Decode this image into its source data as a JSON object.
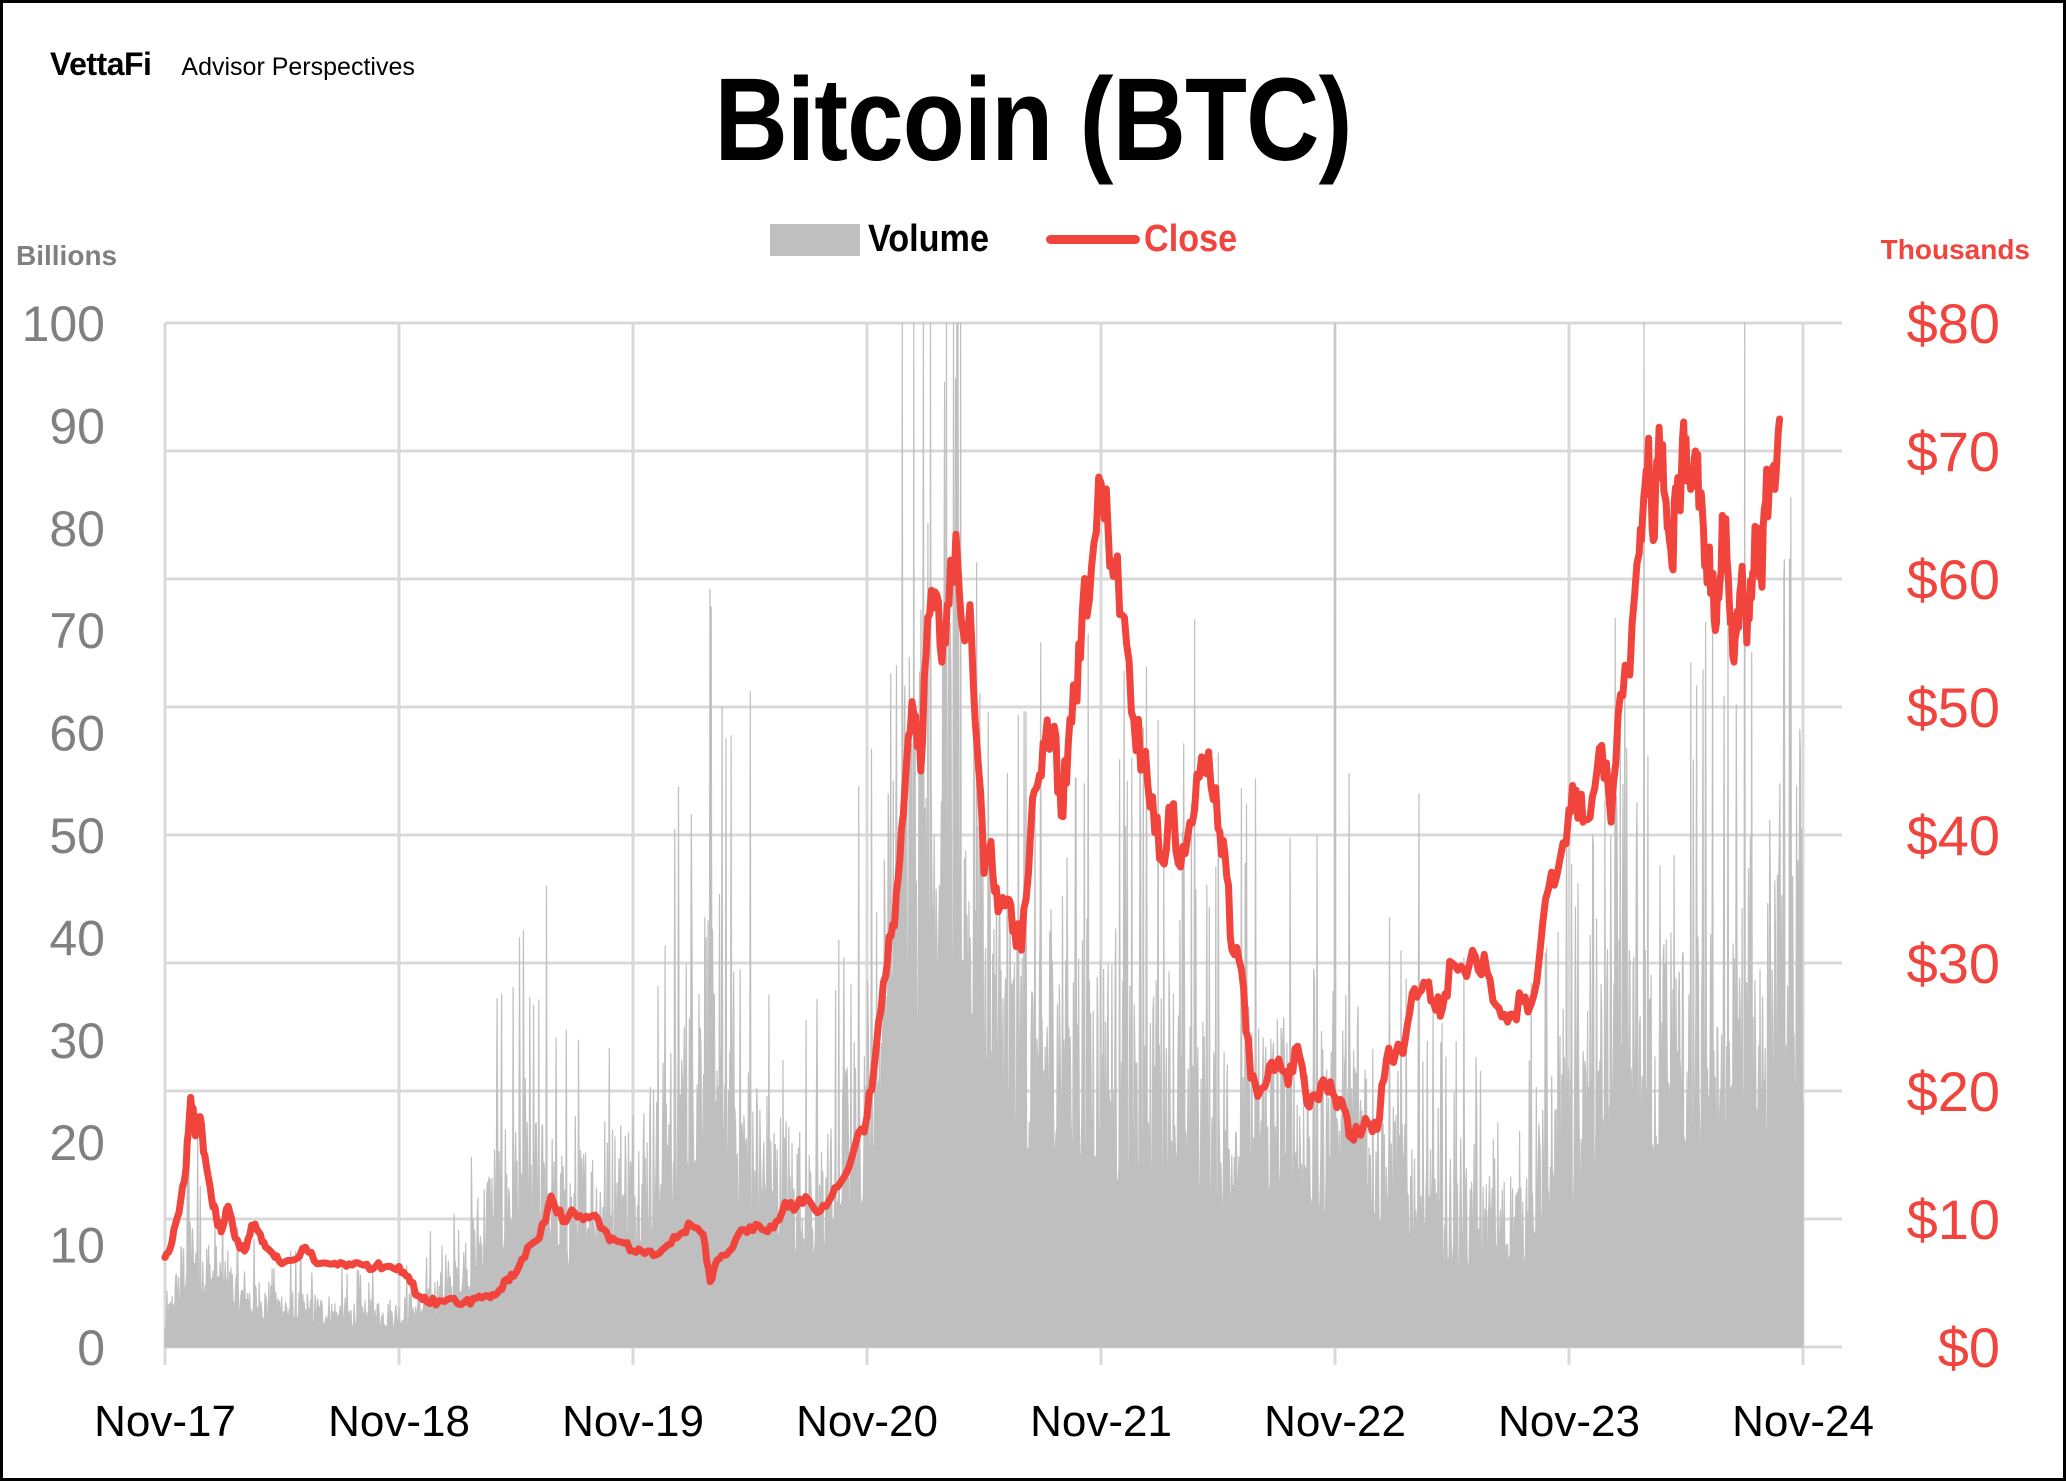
{
  "header": {
    "logo_brand": "VettaFi",
    "logo_sub": "Advisor Perspectives",
    "title": "Bitcoin (BTC)"
  },
  "legend": {
    "volume_label": "Volume",
    "close_label": "Close"
  },
  "axes": {
    "left_title": "Billions",
    "right_title": "Thousands",
    "left_ticks": [
      "0",
      "10",
      "20",
      "30",
      "40",
      "50",
      "60",
      "70",
      "80",
      "90",
      "100"
    ],
    "right_ticks": [
      "$0",
      "$10",
      "$20",
      "$30",
      "$40",
      "$50",
      "$60",
      "$70",
      "$80"
    ],
    "x_ticks": [
      "Nov-17",
      "Nov-18",
      "Nov-19",
      "Nov-20",
      "Nov-21",
      "Nov-22",
      "Nov-23",
      "Nov-24"
    ]
  },
  "colors": {
    "volume": "#bfbfbf",
    "close": "#f0443c",
    "grid": "#d9d9d9",
    "left_axis_text": "#808080",
    "right_axis_text": "#f0443c"
  },
  "chart_data": {
    "type": "bar+line",
    "title": "Bitcoin (BTC)",
    "xlabel": "",
    "ylabel": "Volume (Billions)",
    "y2label": "Close (Thousands, USD)",
    "ylim": [
      0,
      100
    ],
    "y2lim": [
      0,
      80
    ],
    "grid": true,
    "legend_position": "top",
    "categories": [
      "Nov-17",
      "Nov-18",
      "Nov-19",
      "Nov-20",
      "Nov-21",
      "Nov-22",
      "Nov-23",
      "Nov-24"
    ],
    "series": [
      {
        "name": "Close",
        "type": "line",
        "axis": "right",
        "unit": "USD thousands",
        "x_years_since_nov17": [
          0.0,
          0.03,
          0.06,
          0.09,
          0.11,
          0.13,
          0.15,
          0.17,
          0.2,
          0.22,
          0.24,
          0.27,
          0.3,
          0.34,
          0.37,
          0.4,
          0.43,
          0.47,
          0.5,
          0.55,
          0.6,
          0.65,
          0.7,
          0.75,
          0.8,
          0.85,
          0.9,
          0.95,
          1.0,
          1.04,
          1.08,
          1.12,
          1.17,
          1.22,
          1.28,
          1.33,
          1.38,
          1.42,
          1.46,
          1.5,
          1.55,
          1.6,
          1.65,
          1.7,
          1.75,
          1.8,
          1.85,
          1.9,
          1.95,
          2.0,
          2.05,
          2.1,
          2.15,
          2.2,
          2.25,
          2.3,
          2.33,
          2.36,
          2.4,
          2.45,
          2.5,
          2.55,
          2.6,
          2.65,
          2.7,
          2.75,
          2.8,
          2.85,
          2.9,
          2.95,
          3.0,
          3.04,
          3.08,
          3.11,
          3.14,
          3.17,
          3.2,
          3.23,
          3.26,
          3.29,
          3.32,
          3.35,
          3.38,
          3.41,
          3.44,
          3.47,
          3.5,
          3.53,
          3.56,
          3.6,
          3.63,
          3.66,
          3.7,
          3.73,
          3.76,
          3.8,
          3.83,
          3.86,
          3.89,
          3.92,
          3.96,
          4.0,
          4.03,
          4.06,
          4.1,
          4.14,
          4.18,
          4.22,
          4.26,
          4.3,
          4.34,
          4.38,
          4.42,
          4.46,
          4.5,
          4.53,
          4.56,
          4.6,
          4.64,
          4.68,
          4.72,
          4.76,
          4.8,
          4.84,
          4.88,
          4.92,
          4.96,
          5.0,
          5.03,
          5.06,
          5.1,
          5.14,
          5.18,
          5.22,
          5.26,
          5.3,
          5.34,
          5.38,
          5.42,
          5.46,
          5.5,
          5.55,
          5.6,
          5.65,
          5.7,
          5.75,
          5.8,
          5.85,
          5.9,
          5.95,
          6.0,
          6.03,
          6.06,
          6.1,
          6.14,
          6.18,
          6.22,
          6.26,
          6.3,
          6.32,
          6.34,
          6.36,
          6.38,
          6.4,
          6.42,
          6.44,
          6.46,
          6.48,
          6.5,
          6.52,
          6.54,
          6.56,
          6.58,
          6.6,
          6.62,
          6.64,
          6.66,
          6.68,
          6.7,
          6.72,
          6.74,
          6.76,
          6.78,
          6.8,
          6.82,
          6.84,
          6.86,
          6.88,
          6.9,
          6.92,
          6.94,
          6.96,
          6.98,
          7.0
        ],
        "values": [
          7.0,
          8.2,
          10.5,
          14.0,
          19.5,
          16.5,
          18.0,
          15.0,
          11.5,
          10.0,
          9.0,
          11.0,
          8.5,
          7.5,
          9.5,
          9.0,
          7.8,
          7.0,
          6.5,
          6.8,
          7.8,
          6.5,
          6.5,
          6.6,
          6.4,
          6.4,
          6.3,
          6.3,
          6.3,
          5.5,
          4.0,
          3.5,
          3.6,
          3.8,
          3.5,
          3.8,
          4.0,
          4.2,
          5.3,
          5.8,
          7.8,
          8.5,
          11.8,
          9.8,
          10.5,
          10.2,
          10.0,
          8.3,
          8.2,
          7.5,
          7.3,
          7.2,
          8.0,
          8.8,
          9.5,
          8.8,
          5.1,
          6.8,
          7.2,
          8.8,
          9.4,
          9.2,
          9.3,
          11.3,
          11.0,
          11.5,
          10.6,
          11.8,
          13.2,
          15.8,
          18.0,
          23.5,
          29.0,
          33.0,
          38.0,
          46.0,
          49.5,
          45.0,
          57.0,
          59.0,
          53.5,
          58.0,
          63.5,
          56.0,
          58.0,
          47.0,
          37.0,
          39.5,
          34.0,
          35.0,
          33.0,
          31.0,
          40.5,
          44.0,
          47.0,
          48.5,
          41.5,
          47.0,
          51.0,
          57.5,
          61.0,
          67.5,
          64.0,
          61.0,
          57.0,
          49.0,
          46.0,
          43.0,
          38.0,
          42.0,
          37.5,
          41.0,
          44.5,
          46.5,
          40.5,
          38.5,
          31.0,
          29.5,
          21.0,
          20.0,
          22.0,
          22.5,
          20.5,
          23.5,
          19.0,
          19.5,
          20.5,
          19.5,
          19.2,
          16.5,
          16.8,
          17.5,
          17.0,
          22.5,
          23.0,
          24.0,
          28.0,
          28.5,
          27.0,
          26.5,
          30.0,
          29.5,
          30.5,
          29.3,
          26.5,
          26.0,
          27.0,
          27.5,
          35.0,
          37.0,
          42.0,
          43.5,
          41.0,
          43.0,
          47.0,
          41.0,
          51.0,
          52.5,
          62.0,
          66.5,
          71.0,
          63.0,
          69.0,
          70.5,
          64.0,
          61.0,
          66.5,
          68.0,
          71.0,
          67.0,
          70.0,
          66.0,
          61.0,
          62.5,
          57.0,
          58.5,
          64.5,
          60.5,
          54.0,
          57.5,
          61.0,
          55.0,
          58.5,
          63.0,
          60.5,
          66.0,
          68.5,
          67.0,
          72.5
        ]
      },
      {
        "name": "Volume",
        "type": "area",
        "axis": "left",
        "unit": "USD billions",
        "x_years_since_nov17": [
          0.0,
          0.1,
          0.2,
          0.3,
          0.4,
          0.5,
          0.6,
          0.7,
          0.8,
          0.9,
          1.0,
          1.1,
          1.2,
          1.3,
          1.4,
          1.5,
          1.6,
          1.7,
          1.8,
          1.9,
          2.0,
          2.1,
          2.2,
          2.3,
          2.4,
          2.5,
          2.6,
          2.7,
          2.8,
          2.9,
          3.0,
          3.1,
          3.2,
          3.3,
          3.4,
          3.5,
          3.6,
          3.7,
          3.8,
          3.9,
          4.0,
          4.1,
          4.2,
          4.3,
          4.4,
          4.5,
          4.6,
          4.7,
          4.8,
          4.9,
          5.0,
          5.1,
          5.2,
          5.3,
          5.4,
          5.5,
          5.6,
          5.7,
          5.8,
          5.9,
          6.0,
          6.1,
          6.2,
          6.3,
          6.4,
          6.5,
          6.6,
          6.7,
          6.8,
          6.9,
          7.0
        ],
        "baseline_values": [
          2.0,
          10.0,
          8.0,
          6.0,
          5.0,
          4.5,
          4.0,
          3.8,
          3.5,
          3.5,
          3.5,
          4.5,
          6.0,
          9.0,
          15.0,
          18.0,
          17.0,
          14.0,
          15.0,
          16.0,
          18.0,
          20.0,
          26.0,
          34.0,
          28.0,
          20.0,
          18.0,
          16.0,
          15.0,
          20.0,
          27.0,
          40.0,
          55.0,
          60.0,
          52.0,
          40.0,
          33.0,
          30.0,
          34.0,
          33.0,
          30.0,
          28.0,
          30.0,
          28.0,
          27.0,
          22.0,
          25.0,
          26.0,
          24.0,
          22.0,
          23.0,
          27.0,
          20.0,
          18.0,
          16.0,
          14.0,
          13.0,
          12.0,
          14.0,
          19.0,
          23.0,
          26.0,
          32.0,
          30.0,
          31.0,
          30.0,
          32.0,
          32.0,
          34.0,
          35.0,
          40.0
        ],
        "peaks": [
          {
            "x": 0.1,
            "v": 24.0
          },
          {
            "x": 0.14,
            "v": 21.0
          },
          {
            "x": 1.2,
            "v": 9.0
          },
          {
            "x": 1.42,
            "v": 34.0
          },
          {
            "x": 1.63,
            "v": 45.0
          },
          {
            "x": 1.88,
            "v": 22.0
          },
          {
            "x": 2.25,
            "v": 52.0
          },
          {
            "x": 2.33,
            "v": 74.0
          },
          {
            "x": 2.38,
            "v": 58.0
          },
          {
            "x": 2.5,
            "v": 64.0
          },
          {
            "x": 2.9,
            "v": 38.0
          },
          {
            "x": 3.09,
            "v": 54.0
          },
          {
            "x": 3.15,
            "v": 100.0
          },
          {
            "x": 3.2,
            "v": 100.0
          },
          {
            "x": 3.24,
            "v": 100.0
          },
          {
            "x": 3.34,
            "v": 100.0
          },
          {
            "x": 3.4,
            "v": 100.0
          },
          {
            "x": 3.6,
            "v": 56.0
          },
          {
            "x": 3.68,
            "v": 62.0
          },
          {
            "x": 3.93,
            "v": 55.0
          },
          {
            "x": 4.1,
            "v": 66.0
          },
          {
            "x": 4.4,
            "v": 71.0
          },
          {
            "x": 4.5,
            "v": 58.0
          },
          {
            "x": 5.0,
            "v": 100.0
          },
          {
            "x": 5.06,
            "v": 56.0
          },
          {
            "x": 5.36,
            "v": 54.0
          },
          {
            "x": 5.55,
            "v": 38.0
          },
          {
            "x": 6.1,
            "v": 50.0
          },
          {
            "x": 6.22,
            "v": 60.0
          },
          {
            "x": 6.32,
            "v": 100.0
          },
          {
            "x": 6.45,
            "v": 48.0
          },
          {
            "x": 6.75,
            "v": 100.0
          },
          {
            "x": 6.9,
            "v": 55.0
          },
          {
            "x": 6.99,
            "v": 58.0
          }
        ]
      }
    ]
  }
}
